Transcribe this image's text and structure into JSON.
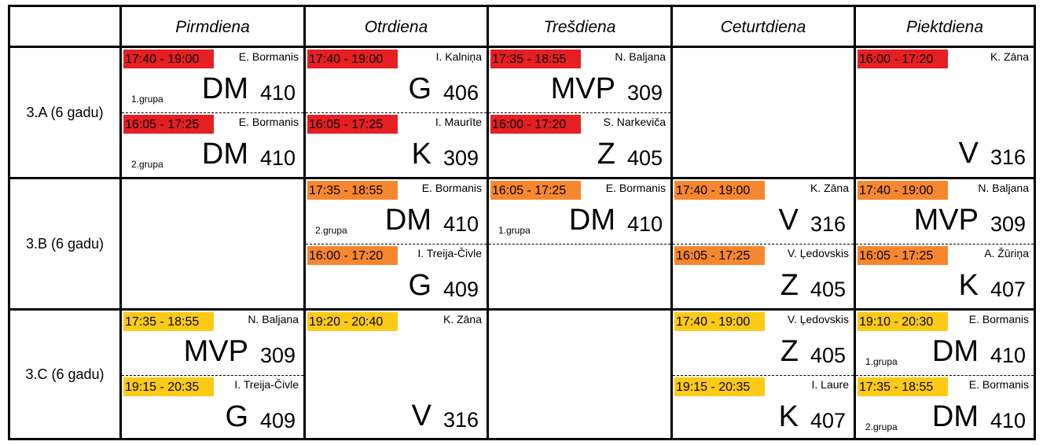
{
  "colors": {
    "red": "#e51f22",
    "orange": "#f7872f",
    "yellow": "#fdca16"
  },
  "days": [
    "Pirmdiena",
    "Otrdiena",
    "Trešdiena",
    "Ceturtdiena",
    "Piektdiena"
  ],
  "classes": [
    "3.A (6 gadu)",
    "3.B (6 gadu)",
    "3.C (6 gadu)"
  ],
  "lessons": {
    "a_mon_1": {
      "time": "17:40 - 19:00",
      "teacher": "E. Bormanis",
      "subject": "DM",
      "room": "410",
      "group": "1.grupa"
    },
    "a_mon_2": {
      "time": "16:05 - 17:25",
      "teacher": "E. Bormanis",
      "subject": "DM",
      "room": "410",
      "group": "2.grupa"
    },
    "a_tue_1": {
      "time": "17:40 - 19:00",
      "teacher": "I. Kalniņa",
      "subject": "G",
      "room": "406"
    },
    "a_tue_2": {
      "time": "16:05 - 17:25",
      "teacher": "I. Maurīte",
      "subject": "K",
      "room": "309"
    },
    "a_wed_1": {
      "time": "17:35 - 18:55",
      "teacher": "N. Baljana",
      "subject": "MVP",
      "room": "309"
    },
    "a_wed_2": {
      "time": "16:00 - 17:20",
      "teacher": "S. Narkeviča",
      "subject": "Z",
      "room": "405"
    },
    "a_fri_1": {
      "time": "16:00 - 17:20",
      "teacher": "K. Zāna",
      "subject": "V",
      "room": "316"
    },
    "b_tue_1": {
      "time": "17:35 - 18:55",
      "teacher": "E. Bormanis",
      "subject": "DM",
      "room": "410",
      "group": "2.grupa"
    },
    "b_tue_2": {
      "time": "16:00 - 17:20",
      "teacher": "I. Treija-Čivle",
      "subject": "G",
      "room": "409"
    },
    "b_wed_1": {
      "time": "16:05 - 17:25",
      "teacher": "E. Bormanis",
      "subject": "DM",
      "room": "410",
      "group": "1.grupa"
    },
    "b_thu_1": {
      "time": "17:40 - 19:00",
      "teacher": "K. Zāna",
      "subject": "V",
      "room": "316"
    },
    "b_thu_2": {
      "time": "16:05 - 17:25",
      "teacher": "V. Ļedovskis",
      "subject": "Z",
      "room": "405"
    },
    "b_fri_1": {
      "time": "17:40 - 19:00",
      "teacher": "N. Baljana",
      "subject": "MVP",
      "room": "309"
    },
    "b_fri_2": {
      "time": "16:05 - 17:25",
      "teacher": "A. Žūriņa",
      "subject": "K",
      "room": "407"
    },
    "c_mon_1": {
      "time": "17:35 - 18:55",
      "teacher": "N. Baljana",
      "subject": "MVP",
      "room": "309"
    },
    "c_mon_2": {
      "time": "19:15 - 20:35",
      "teacher": "I. Treija-Čivle",
      "subject": "G",
      "room": "409"
    },
    "c_tue_1": {
      "time": "19:20 - 20:40",
      "teacher": "K. Zāna",
      "subject": "V",
      "room": "316"
    },
    "c_thu_1": {
      "time": "17:40 - 19:00",
      "teacher": "V. Ļedovskis",
      "subject": "Z",
      "room": "405"
    },
    "c_thu_2": {
      "time": "19:15 - 20:35",
      "teacher": "I. Laure",
      "subject": "K",
      "room": "407"
    },
    "c_fri_1": {
      "time": "19:10 - 20:30",
      "teacher": "E. Bormanis",
      "subject": "DM",
      "room": "410",
      "group": "1.grupa"
    },
    "c_fri_2": {
      "time": "17:35 - 18:55",
      "teacher": "E. Bormanis",
      "subject": "DM",
      "room": "410",
      "group": "2.grupa"
    }
  }
}
